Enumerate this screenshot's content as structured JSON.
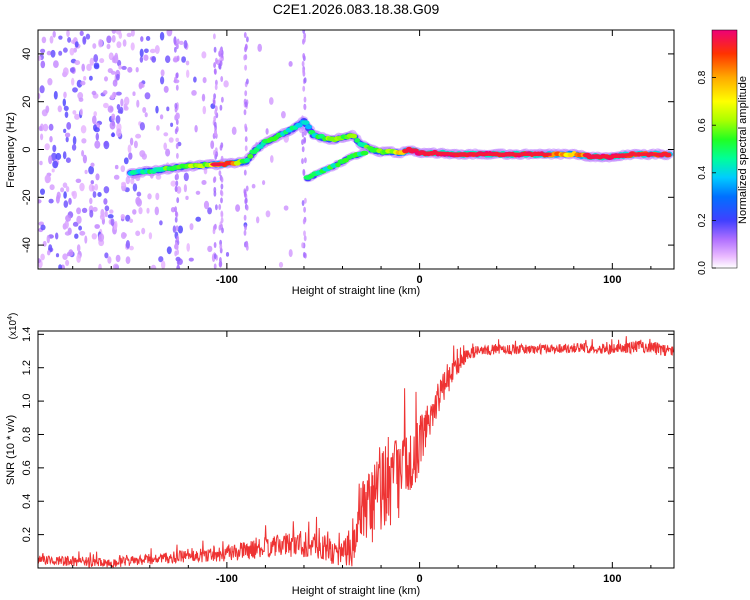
{
  "chart_data": [
    {
      "type": "heatmap",
      "title": "C2E1.2026.083.18.38.G09",
      "xlabel": "Height of straight line (km)",
      "ylabel": "Frequency (Hz)",
      "xlim": [
        -198,
        132
      ],
      "ylim": [
        -50,
        50
      ],
      "xticks": [
        -100,
        0,
        100
      ],
      "xtick_labels": [
        "-100",
        "0",
        "100"
      ],
      "yticks": [
        -40,
        -20,
        0,
        20,
        40
      ],
      "ytick_labels": [
        "-40",
        "-20",
        "0",
        "20",
        "40"
      ],
      "colorbar": {
        "label": "Normalized spectral amplitude",
        "range": [
          0,
          1
        ],
        "ticks": [
          0.0,
          0.2,
          0.4,
          0.6,
          0.8
        ],
        "tick_labels": [
          "0.0",
          "0.2",
          "0.4",
          "0.6",
          "0.8"
        ]
      },
      "ridge": {
        "heights_km": [
          -150,
          -140,
          -130,
          -120,
          -110,
          -100,
          -95,
          -90,
          -85,
          -80,
          -75,
          -70,
          -65,
          -60,
          -55,
          -50,
          -45,
          -40,
          -35,
          -30,
          -25,
          -20,
          -15,
          -10,
          -5,
          0,
          10,
          20,
          40,
          60,
          80,
          90,
          100,
          110,
          120,
          130
        ],
        "frequency_hz": [
          -10,
          -9,
          -8,
          -7,
          -6.5,
          -6,
          -5.5,
          -5,
          0,
          3,
          5,
          7,
          9,
          12,
          6,
          5,
          4,
          5,
          6,
          2,
          0,
          -1,
          -1,
          -1.5,
          0,
          -1.5,
          -1.5,
          -2,
          -2,
          -2,
          -2,
          -3,
          -3,
          -2,
          -2,
          -2
        ],
        "amplitude": [
          0.35,
          0.45,
          0.5,
          0.55,
          0.6,
          0.95,
          0.7,
          0.5,
          0.4,
          0.5,
          0.45,
          0.45,
          0.4,
          0.4,
          0.4,
          0.55,
          0.55,
          0.5,
          0.55,
          0.45,
          0.55,
          0.6,
          0.55,
          0.7,
          0.95,
          0.95,
          0.95,
          0.95,
          0.95,
          0.95,
          0.7,
          0.95,
          0.95,
          0.9,
          0.9,
          0.85
        ]
      },
      "secondary_branch": {
        "heights_km": [
          -58,
          -50,
          -42,
          -35,
          -28
        ],
        "frequency_hz": [
          -12,
          -9,
          -6,
          -3,
          -1
        ]
      }
    },
    {
      "type": "line",
      "xlabel": "Height of straight line (km)",
      "ylabel": "SNR (10 * v/v)",
      "scale_label": "(x10",
      "scale_exp": "4",
      "scale_close": ")",
      "xlim": [
        -198,
        132
      ],
      "ylim": [
        0,
        1.42
      ],
      "xticks": [
        -100,
        0,
        100
      ],
      "xtick_labels": [
        "-100",
        "0",
        "100"
      ],
      "yticks": [
        0.2,
        0.4,
        0.6,
        0.8,
        1.0,
        1.2,
        1.4
      ],
      "ytick_labels": [
        "0.2",
        "0.4",
        "0.6",
        "0.8",
        "1.0",
        "1.2",
        "1.4"
      ],
      "color": "#ee3333",
      "series": [
        {
          "name": "SNR",
          "x": [
            -198,
            -180,
            -160,
            -140,
            -120,
            -100,
            -80,
            -70,
            -60,
            -50,
            -40,
            -35,
            -30,
            -25,
            -20,
            -15,
            -10,
            -5,
            0,
            5,
            10,
            15,
            20,
            25,
            30,
            40,
            60,
            80,
            100,
            115,
            125,
            132
          ],
          "y": [
            0.05,
            0.04,
            0.03,
            0.05,
            0.07,
            0.09,
            0.12,
            0.14,
            0.15,
            0.12,
            0.08,
            0.15,
            0.28,
            0.38,
            0.48,
            0.52,
            0.56,
            0.62,
            0.74,
            0.9,
            1.03,
            1.13,
            1.22,
            1.28,
            1.3,
            1.31,
            1.31,
            1.32,
            1.31,
            1.33,
            1.31,
            1.3
          ],
          "noise": [
            0.03,
            0.03,
            0.03,
            0.03,
            0.04,
            0.05,
            0.06,
            0.07,
            0.09,
            0.08,
            0.08,
            0.14,
            0.22,
            0.28,
            0.3,
            0.28,
            0.25,
            0.2,
            0.16,
            0.13,
            0.1,
            0.08,
            0.06,
            0.04,
            0.03,
            0.03,
            0.03,
            0.03,
            0.03,
            0.04,
            0.04,
            0.03
          ]
        }
      ]
    }
  ]
}
